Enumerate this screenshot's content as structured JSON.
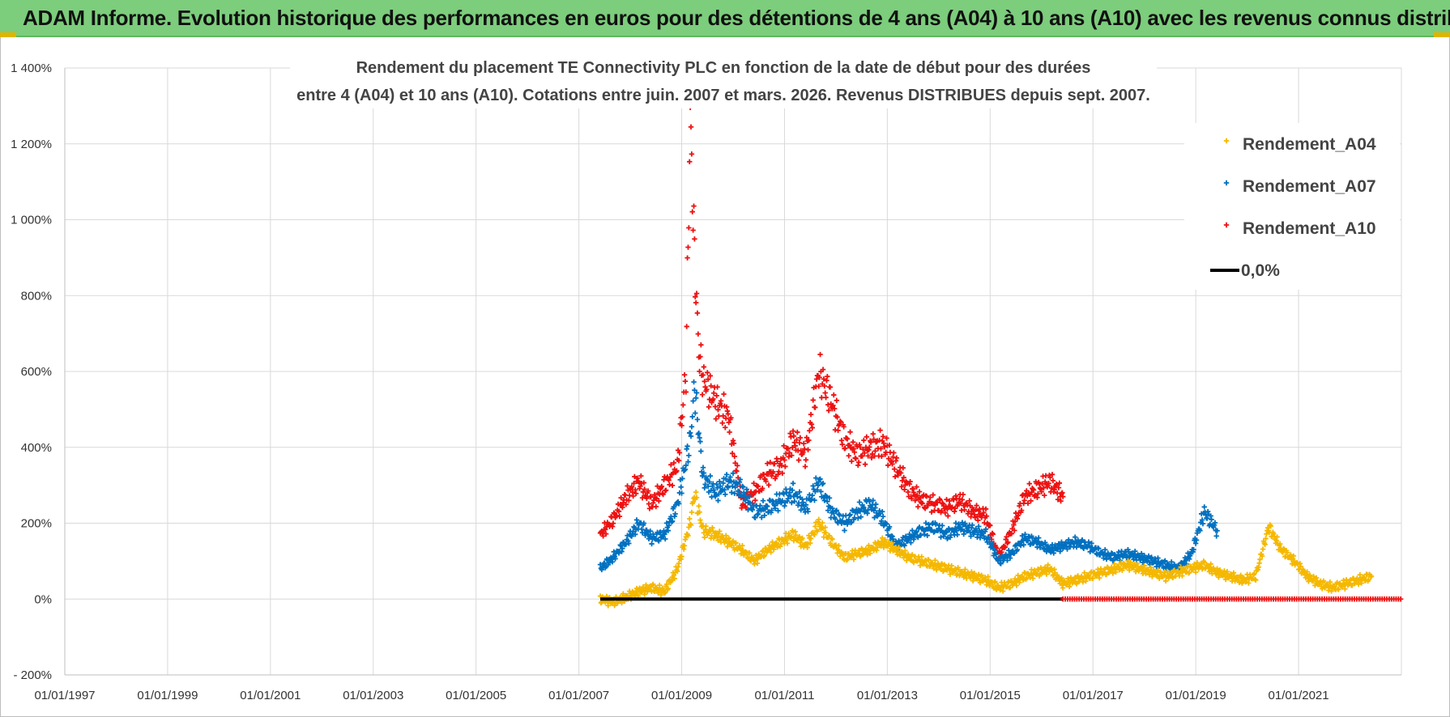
{
  "header": {
    "banner": "ADAM Informe. Evolution historique des performances en euros pour des détentions de 4 ans (A04) à 10 ans (A10) avec les revenus connus distribués"
  },
  "chart_data": {
    "type": "scatter",
    "title_lines": [
      "Rendement du placement TE Connectivity PLC en fonction de la date de début pour des durées",
      "entre 4 (A04) et 10 ans (A10).  Cotations entre juin. 2007 et mars. 2026.  Revenus DISTRIBUES depuis sept. 2007."
    ],
    "x_ticks": [
      "01/01/1997",
      "01/01/1999",
      "01/01/2001",
      "01/01/2003",
      "01/01/2005",
      "01/01/2007",
      "01/01/2009",
      "01/01/2011",
      "01/01/2013",
      "01/01/2015",
      "01/01/2017",
      "01/01/2019",
      "01/01/2021"
    ],
    "y_ticks": [
      "1 400%",
      "1 200%",
      "1 000%",
      "800%",
      "600%",
      "400%",
      "200%",
      "0%",
      "- 200%"
    ],
    "xlim": [
      "01/01/1997",
      "01/01/2023"
    ],
    "ylim": [
      -200,
      1400
    ],
    "grid": true,
    "legend_position": "top-right",
    "series": [
      {
        "name": "Rendement_A04",
        "color": "#f5b800",
        "marker": "+",
        "points": [
          [
            "06/2007",
            0
          ],
          [
            "09/2007",
            -8
          ],
          [
            "12/2007",
            5
          ],
          [
            "03/2008",
            20
          ],
          [
            "06/2008",
            30
          ],
          [
            "09/2008",
            20
          ],
          [
            "12/2008",
            80
          ],
          [
            "03/2009",
            200
          ],
          [
            "04/2009",
            280
          ],
          [
            "06/2009",
            180
          ],
          [
            "09/2009",
            170
          ],
          [
            "12/2009",
            150
          ],
          [
            "03/2010",
            130
          ],
          [
            "06/2010",
            100
          ],
          [
            "09/2010",
            130
          ],
          [
            "12/2010",
            150
          ],
          [
            "03/2011",
            170
          ],
          [
            "06/2011",
            140
          ],
          [
            "09/2011",
            200
          ],
          [
            "12/2011",
            150
          ],
          [
            "03/2012",
            110
          ],
          [
            "06/2012",
            120
          ],
          [
            "09/2012",
            130
          ],
          [
            "12/2012",
            150
          ],
          [
            "03/2013",
            130
          ],
          [
            "06/2013",
            110
          ],
          [
            "09/2013",
            100
          ],
          [
            "12/2013",
            90
          ],
          [
            "03/2014",
            80
          ],
          [
            "06/2014",
            70
          ],
          [
            "09/2014",
            60
          ],
          [
            "12/2014",
            50
          ],
          [
            "03/2015",
            30
          ],
          [
            "06/2015",
            40
          ],
          [
            "09/2015",
            60
          ],
          [
            "12/2015",
            70
          ],
          [
            "03/2016",
            80
          ],
          [
            "06/2016",
            40
          ],
          [
            "09/2016",
            50
          ],
          [
            "12/2016",
            60
          ],
          [
            "03/2017",
            70
          ],
          [
            "06/2017",
            80
          ],
          [
            "09/2017",
            90
          ],
          [
            "12/2017",
            80
          ],
          [
            "03/2018",
            70
          ],
          [
            "06/2018",
            60
          ],
          [
            "09/2018",
            70
          ],
          [
            "12/2018",
            80
          ],
          [
            "03/2019",
            90
          ],
          [
            "06/2019",
            70
          ],
          [
            "09/2019",
            60
          ],
          [
            "12/2019",
            50
          ],
          [
            "03/2020",
            60
          ],
          [
            "06/2020",
            190
          ],
          [
            "09/2020",
            130
          ],
          [
            "12/2020",
            100
          ],
          [
            "03/2021",
            60
          ],
          [
            "06/2021",
            40
          ],
          [
            "09/2021",
            30
          ],
          [
            "12/2021",
            40
          ],
          [
            "03/2022",
            50
          ],
          [
            "06/2022",
            60
          ]
        ]
      },
      {
        "name": "Rendement_A07",
        "color": "#0070c0",
        "marker": "+",
        "points": [
          [
            "06/2007",
            80
          ],
          [
            "09/2007",
            110
          ],
          [
            "12/2007",
            150
          ],
          [
            "03/2008",
            200
          ],
          [
            "06/2008",
            160
          ],
          [
            "09/2008",
            170
          ],
          [
            "12/2008",
            250
          ],
          [
            "03/2009",
            420
          ],
          [
            "04/2009",
            560
          ],
          [
            "06/2009",
            320
          ],
          [
            "09/2009",
            280
          ],
          [
            "12/2009",
            310
          ],
          [
            "03/2010",
            290
          ],
          [
            "06/2010",
            230
          ],
          [
            "09/2010",
            240
          ],
          [
            "12/2010",
            260
          ],
          [
            "03/2011",
            280
          ],
          [
            "06/2011",
            240
          ],
          [
            "09/2011",
            310
          ],
          [
            "12/2011",
            230
          ],
          [
            "03/2012",
            200
          ],
          [
            "06/2012",
            230
          ],
          [
            "09/2012",
            250
          ],
          [
            "12/2012",
            210
          ],
          [
            "03/2013",
            140
          ],
          [
            "06/2013",
            160
          ],
          [
            "09/2013",
            180
          ],
          [
            "12/2013",
            190
          ],
          [
            "03/2014",
            170
          ],
          [
            "06/2014",
            190
          ],
          [
            "09/2014",
            180
          ],
          [
            "12/2014",
            170
          ],
          [
            "03/2015",
            100
          ],
          [
            "06/2015",
            120
          ],
          [
            "09/2015",
            160
          ],
          [
            "12/2015",
            150
          ],
          [
            "03/2016",
            130
          ],
          [
            "06/2016",
            140
          ],
          [
            "09/2016",
            150
          ],
          [
            "12/2016",
            140
          ],
          [
            "03/2017",
            120
          ],
          [
            "06/2017",
            110
          ],
          [
            "09/2017",
            120
          ],
          [
            "12/2017",
            110
          ],
          [
            "03/2018",
            100
          ],
          [
            "06/2018",
            90
          ],
          [
            "09/2018",
            80
          ],
          [
            "12/2018",
            120
          ],
          [
            "03/2019",
            230
          ],
          [
            "06/2019",
            180
          ]
        ]
      },
      {
        "name": "Rendement_A10",
        "color": "#ee1111",
        "marker": "+",
        "points": [
          [
            "06/2007",
            170
          ],
          [
            "09/2007",
            210
          ],
          [
            "12/2007",
            270
          ],
          [
            "03/2008",
            310
          ],
          [
            "06/2008",
            250
          ],
          [
            "09/2008",
            300
          ],
          [
            "12/2008",
            350
          ],
          [
            "02/2009",
            600
          ],
          [
            "03/2009",
            1270
          ],
          [
            "04/2009",
            900
          ],
          [
            "05/2009",
            650
          ],
          [
            "06/2009",
            580
          ],
          [
            "09/2009",
            520
          ],
          [
            "12/2009",
            480
          ],
          [
            "03/2010",
            250
          ],
          [
            "06/2010",
            280
          ],
          [
            "09/2010",
            330
          ],
          [
            "12/2010",
            350
          ],
          [
            "03/2011",
            420
          ],
          [
            "06/2011",
            380
          ],
          [
            "09/2011",
            600
          ],
          [
            "12/2011",
            520
          ],
          [
            "03/2012",
            420
          ],
          [
            "06/2012",
            380
          ],
          [
            "09/2012",
            400
          ],
          [
            "12/2012",
            410
          ],
          [
            "03/2013",
            350
          ],
          [
            "06/2013",
            290
          ],
          [
            "09/2013",
            260
          ],
          [
            "12/2013",
            250
          ],
          [
            "03/2014",
            240
          ],
          [
            "06/2014",
            260
          ],
          [
            "09/2014",
            230
          ],
          [
            "12/2014",
            220
          ],
          [
            "03/2015",
            110
          ],
          [
            "06/2015",
            180
          ],
          [
            "09/2015",
            270
          ],
          [
            "12/2015",
            290
          ],
          [
            "03/2016",
            310
          ],
          [
            "06/2016",
            270
          ]
        ]
      },
      {
        "name": "0,0%",
        "color": "#000000",
        "marker": "line",
        "points": [
          [
            "06/2007",
            0
          ],
          [
            "06/2016",
            0
          ]
        ]
      }
    ]
  }
}
